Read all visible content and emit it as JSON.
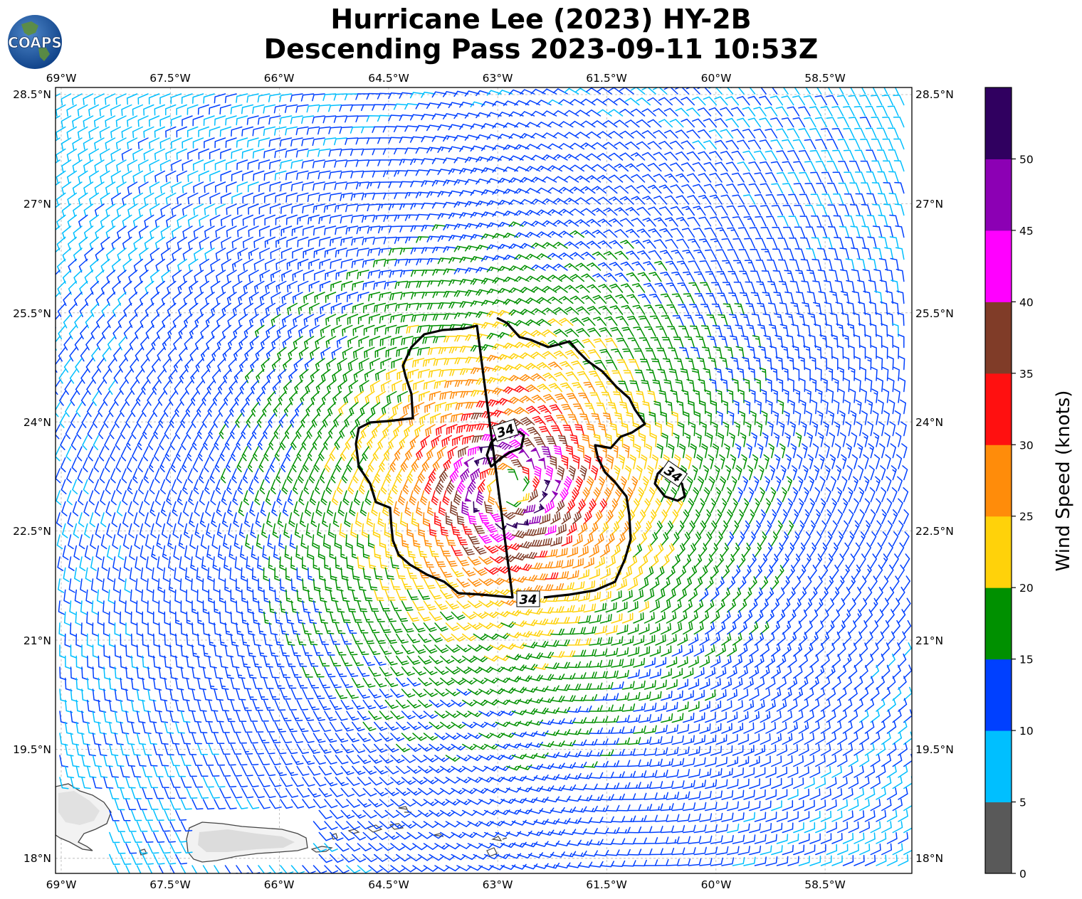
{
  "title": {
    "line1": "Hurricane Lee (2023) HY-2B",
    "line2": "Descending Pass 2023-09-11 10:53Z"
  },
  "logo": {
    "text": "COAPS"
  },
  "map": {
    "lon_labels": [
      "69°W",
      "67.5°W",
      "66°W",
      "64.5°W",
      "63°W",
      "61.5°W",
      "60°W",
      "58.5°W"
    ],
    "lat_labels": [
      "28.5°N",
      "27°N",
      "25.5°N",
      "24°N",
      "22.5°N",
      "21°N",
      "19.5°N",
      "18°N"
    ],
    "contour": {
      "label": "34",
      "label_count": 3
    }
  },
  "colorbar": {
    "label": "Wind Speed (knots)",
    "ticks": [
      "0",
      "5",
      "10",
      "15",
      "20",
      "25",
      "30",
      "35",
      "40",
      "45",
      "50"
    ],
    "colors": [
      "#595959",
      "#00bfff",
      "#0040ff",
      "#009000",
      "#ffd20a",
      "#ff8c0a",
      "#ff1010",
      "#803c28",
      "#ff00ff",
      "#8c00b4",
      "#300060"
    ]
  },
  "wind_field": {
    "center": {
      "lon": -62.85,
      "lat": 23.1
    },
    "max_speed_knots": 52,
    "radius_of_max_wind_deg": 0.5,
    "swath_edge": "right"
  }
}
